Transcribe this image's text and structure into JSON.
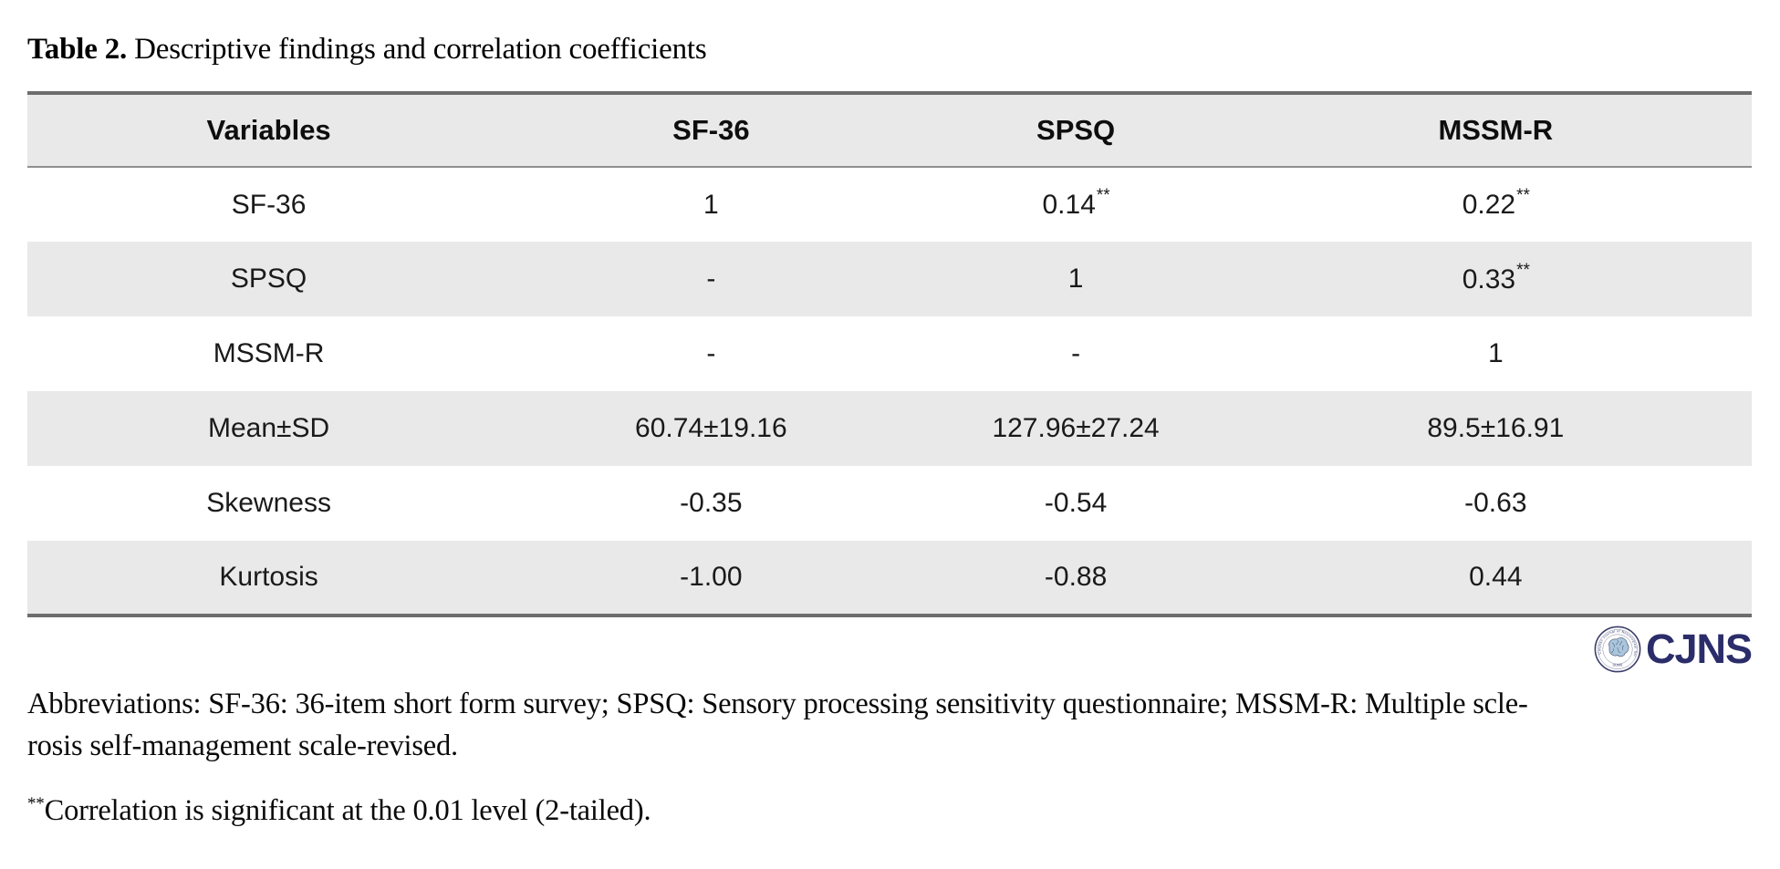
{
  "title": {
    "label": "Table 2.",
    "text": " Descriptive findings and correlation coefficients"
  },
  "table": {
    "columns": [
      "Variables",
      "SF-36",
      "SPSQ",
      "MSSM-R"
    ],
    "rows": [
      {
        "label": "SF-36",
        "cells": [
          {
            "t": "1"
          },
          {
            "t": "0.14",
            "sup": "**"
          },
          {
            "t": "0.22",
            "sup": "**"
          }
        ]
      },
      {
        "label": "SPSQ",
        "cells": [
          {
            "t": "-"
          },
          {
            "t": "1"
          },
          {
            "t": "0.33",
            "sup": "**"
          }
        ]
      },
      {
        "label": "MSSM-R",
        "cells": [
          {
            "t": "-"
          },
          {
            "t": "-"
          },
          {
            "t": "1"
          }
        ]
      },
      {
        "label": "Mean±SD",
        "cells": [
          {
            "t": "60.74±19.16"
          },
          {
            "t": "127.96±27.24"
          },
          {
            "t": "89.5±16.91"
          }
        ]
      },
      {
        "label": "Skewness",
        "cells": [
          {
            "t": "-0.35"
          },
          {
            "t": "-0.54"
          },
          {
            "t": "-0.63"
          }
        ]
      },
      {
        "label": "Kurtosis",
        "cells": [
          {
            "t": "-1.00"
          },
          {
            "t": "-0.88"
          },
          {
            "t": "0.44"
          }
        ]
      }
    ]
  },
  "logo": {
    "text": "CJNS",
    "seal_ring_text": "Caspian Journal of Neurological Sciences",
    "seal_bottom_text": "GUMS",
    "navy": "#2b2d6a",
    "brain_blue": "#a9c6dd"
  },
  "notes": {
    "abbreviations_line1": "Abbreviations: SF-36: 36-item short form survey; SPSQ: Sensory processing sensitivity questionnaire; MSSM-R: Multiple scle-",
    "abbreviations_line2": "rosis self-management scale-revised.",
    "significance_sup": "**",
    "significance_text": "Correlation is significant at the 0.01 level (2-tailed)."
  }
}
